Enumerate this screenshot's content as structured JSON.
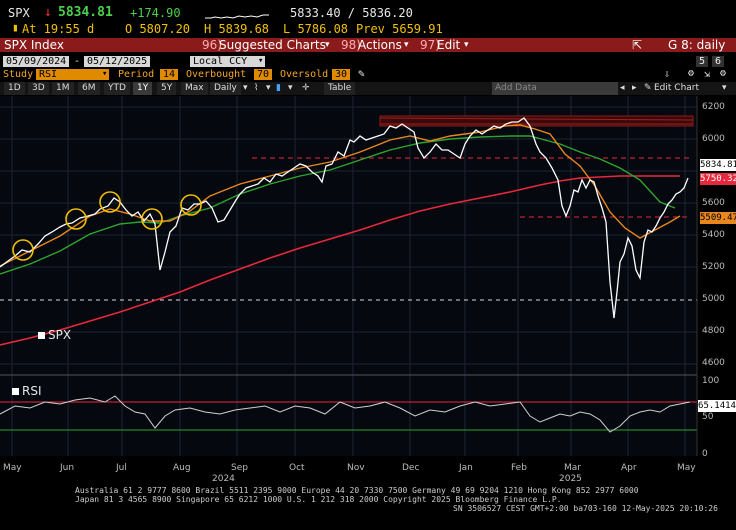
{
  "quote": {
    "ticker": "SPX",
    "price": "5834.81",
    "change": "+174.90",
    "bid_ask": "5833.40 / 5836.20",
    "time_label": "At 19:55 d",
    "open": "O 5807.20",
    "high": "H 5839.68",
    "low": "L 5786.08",
    "prev": "Prev 5659.91"
  },
  "titlebar": {
    "security": "SPX Index",
    "suggested_num": "96)",
    "suggested": "Suggested Charts",
    "actions_num": "98)",
    "actions": "Actions",
    "edit_num": "97)",
    "edit": "Edit",
    "page_label": "G 8: daily"
  },
  "params": {
    "start_date": "05/09/2024",
    "end_date": "05/12/2025",
    "currency": "Local CCY",
    "study_label": "Study",
    "study_value": "RSI",
    "period_label": "Period",
    "period_value": "14",
    "overbought_label": "Overbought",
    "overbought_value": "70",
    "oversold_label": "Oversold",
    "oversold_value": "30",
    "page_counter_a": "5",
    "page_counter_b": "6"
  },
  "toolbar": {
    "ranges": [
      "1D",
      "3D",
      "1M",
      "6M",
      "YTD",
      "1Y",
      "5Y",
      "Max"
    ],
    "selected_range": "1Y",
    "freq": "Daily",
    "table": "Table",
    "add_data": "Add Data",
    "edit_chart": "Edit Chart"
  },
  "chart": {
    "price_legend": "SPX",
    "rsi_legend": "RSI",
    "last_price_tag": "5834.81",
    "ma200_tag": "5750.32",
    "ma50_tag": "5509.47",
    "rsi_tag": "65.1414",
    "months": [
      "May",
      "Jun",
      "Jul",
      "Aug",
      "Sep",
      "Oct",
      "Nov",
      "Dec",
      "Jan",
      "Feb",
      "Mar",
      "Apr",
      "May"
    ],
    "year_labels": [
      "2024",
      "2025"
    ],
    "price_ticks": [
      "6200",
      "6000",
      "5800",
      "5600",
      "5400",
      "5200",
      "5000",
      "4800",
      "4600"
    ],
    "rsi_ticks": [
      "100",
      "50",
      "0"
    ],
    "colors": {
      "price": "#ffffff",
      "ma_fast": "#e8871e",
      "ma_mid": "#2fa52f",
      "ma_slow": "#e8283c",
      "accent": "#f0c000"
    }
  },
  "chart_data": {
    "type": "line",
    "title": "SPX Index",
    "series": [
      {
        "name": "SPX",
        "x": [
          "2024-05",
          "2024-06",
          "2024-07",
          "2024-08",
          "2024-09",
          "2024-10",
          "2024-11",
          "2024-12",
          "2025-01",
          "2025-02",
          "2025-03",
          "2025-04",
          "2025-05"
        ],
        "values": [
          5300,
          5460,
          5600,
          5500,
          5690,
          5760,
          5990,
          6050,
          6020,
          6120,
          5650,
          4980,
          5834.81
        ]
      }
    ],
    "ylim": [
      4550,
      6300
    ]
  },
  "footer": {
    "line1": "Australia 61 2 9777 8600 Brazil 5511 2395 9000 Europe 44 20 7330 7500 Germany 49 69 9204 1210 Hong Kong 852 2977 6000",
    "line2": "Japan 81 3 4565 8900        Singapore 65 6212 1000        U.S. 1 212 318 2000              Copyright 2025 Bloomberg Finance L.P.",
    "line3": "SN 3506527 CEST GMT+2:00 ba703-160 12-May-2025 20:10:26"
  }
}
